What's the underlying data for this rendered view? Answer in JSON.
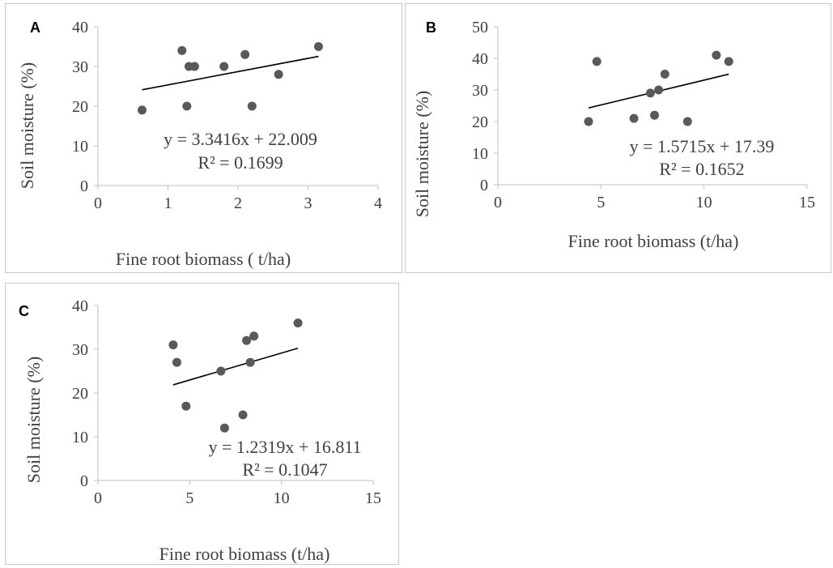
{
  "chart_data": [
    {
      "id": "A",
      "type": "scatter",
      "panel_label": "A",
      "xlabel": "Fine root biomass ( t/ha)",
      "ylabel": "Soil moisture (%)",
      "xlim": [
        0,
        4
      ],
      "ylim": [
        0,
        40
      ],
      "xticks": [
        0,
        1,
        2,
        3,
        4
      ],
      "yticks": [
        0,
        10,
        20,
        30,
        40
      ],
      "points": [
        {
          "x": 0.63,
          "y": 19
        },
        {
          "x": 1.2,
          "y": 34
        },
        {
          "x": 1.27,
          "y": 20
        },
        {
          "x": 1.3,
          "y": 30
        },
        {
          "x": 1.38,
          "y": 30
        },
        {
          "x": 1.8,
          "y": 30
        },
        {
          "x": 2.1,
          "y": 33
        },
        {
          "x": 2.2,
          "y": 20
        },
        {
          "x": 2.58,
          "y": 28
        },
        {
          "x": 3.15,
          "y": 35
        }
      ],
      "trendline": {
        "slope": 3.3416,
        "intercept": 22.009,
        "x_range": [
          0.63,
          3.15
        ]
      },
      "equation": "y = 3.3416x + 22.009",
      "r2": "R² = 0.1699"
    },
    {
      "id": "B",
      "type": "scatter",
      "panel_label": "B",
      "xlabel": "Fine root biomass (t/ha)",
      "ylabel": "Soil moisture (%)",
      "xlim": [
        0,
        15
      ],
      "ylim": [
        0,
        50
      ],
      "xticks": [
        0,
        5,
        10,
        15
      ],
      "yticks": [
        0,
        10,
        20,
        30,
        40,
        50
      ],
      "points": [
        {
          "x": 4.4,
          "y": 20
        },
        {
          "x": 4.8,
          "y": 39
        },
        {
          "x": 6.6,
          "y": 21
        },
        {
          "x": 7.4,
          "y": 29
        },
        {
          "x": 7.6,
          "y": 22
        },
        {
          "x": 7.8,
          "y": 30
        },
        {
          "x": 8.1,
          "y": 35
        },
        {
          "x": 9.2,
          "y": 20
        },
        {
          "x": 10.6,
          "y": 41
        },
        {
          "x": 11.2,
          "y": 39
        }
      ],
      "trendline": {
        "slope": 1.5715,
        "intercept": 17.39,
        "x_range": [
          4.4,
          11.2
        ]
      },
      "equation": "y = 1.5715x + 17.39",
      "r2": "R² = 0.1652"
    },
    {
      "id": "C",
      "type": "scatter",
      "panel_label": "C",
      "xlabel": "Fine root biomass (t/ha)",
      "ylabel": "Soil moisture (%)",
      "xlim": [
        0,
        15
      ],
      "ylim": [
        0,
        40
      ],
      "xticks": [
        0,
        5,
        10,
        15
      ],
      "yticks": [
        0,
        10,
        20,
        30,
        40
      ],
      "points": [
        {
          "x": 4.1,
          "y": 31
        },
        {
          "x": 4.3,
          "y": 27
        },
        {
          "x": 4.8,
          "y": 17
        },
        {
          "x": 6.7,
          "y": 25
        },
        {
          "x": 6.9,
          "y": 12
        },
        {
          "x": 7.9,
          "y": 15
        },
        {
          "x": 8.1,
          "y": 32
        },
        {
          "x": 8.3,
          "y": 27
        },
        {
          "x": 8.5,
          "y": 33
        },
        {
          "x": 10.9,
          "y": 36
        }
      ],
      "trendline": {
        "slope": 1.2319,
        "intercept": 16.811,
        "x_range": [
          4.1,
          10.9
        ]
      },
      "equation": "y = 1.2319x + 16.811",
      "r2": "R² = 0.1047"
    }
  ]
}
